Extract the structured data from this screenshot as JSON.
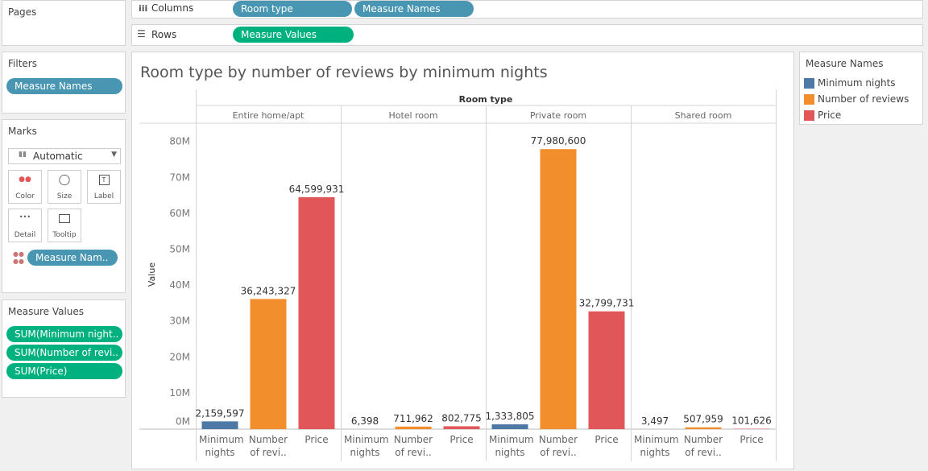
{
  "shelves": {
    "pages": "Pages",
    "columns": {
      "label": "Columns",
      "pills": [
        "Room type",
        "Measure Names"
      ]
    },
    "rows": {
      "label": "Rows",
      "pills": [
        "Measure Values"
      ]
    }
  },
  "filters": {
    "title": "Filters",
    "pills": [
      "Measure Names"
    ]
  },
  "marks": {
    "title": "Marks",
    "mark_type": "Automatic",
    "buttons": [
      "Color",
      "Size",
      "Label",
      "Detail",
      "Tooltip"
    ],
    "pills": [
      "Measure Nam.."
    ]
  },
  "measure_values": {
    "title": "Measure Values",
    "pills": [
      "SUM(Minimum night..",
      "SUM(Number of revi..",
      "SUM(Price)"
    ]
  },
  "chart_data": {
    "type": "bar",
    "title": "Room type by number of reviews by minimum nights",
    "x_header": "Room type",
    "y_label": "Value",
    "legend_title": "Measure Names",
    "categories": [
      "Entire home/apt",
      "Hotel room",
      "Private room",
      "Shared room"
    ],
    "member_labels": [
      "Minimum nights",
      "Number of revi..",
      "Price"
    ],
    "series": [
      {
        "name": "Minimum nights",
        "color": "#4e79a7",
        "values": [
          2159597,
          6398,
          1333805,
          3497
        ],
        "value_labels": [
          "2,159,597",
          "6,398",
          "1,333,805",
          "3,497"
        ]
      },
      {
        "name": "Number of reviews",
        "color": "#f28e2b",
        "values": [
          36243327,
          711962,
          77980600,
          507959
        ],
        "value_labels": [
          "36,243,327",
          "711,962",
          "77,980,600",
          "507,959"
        ]
      },
      {
        "name": "Price",
        "color": "#e15759",
        "values": [
          64599931,
          802775,
          32799731,
          101626
        ],
        "value_labels": [
          "64,599,931",
          "802,775",
          "32,799,731",
          "101,626"
        ]
      }
    ],
    "ylim": [
      0,
      85200000
    ],
    "yticks": [
      {
        "value": 0,
        "label": "0M"
      },
      {
        "value": 10000000,
        "label": "10M"
      },
      {
        "value": 20000000,
        "label": "20M"
      },
      {
        "value": 30000000,
        "label": "30M"
      },
      {
        "value": 40000000,
        "label": "40M"
      },
      {
        "value": 50000000,
        "label": "50M"
      },
      {
        "value": 60000000,
        "label": "60M"
      },
      {
        "value": 70000000,
        "label": "70M"
      },
      {
        "value": 80000000,
        "label": "80M"
      }
    ]
  }
}
